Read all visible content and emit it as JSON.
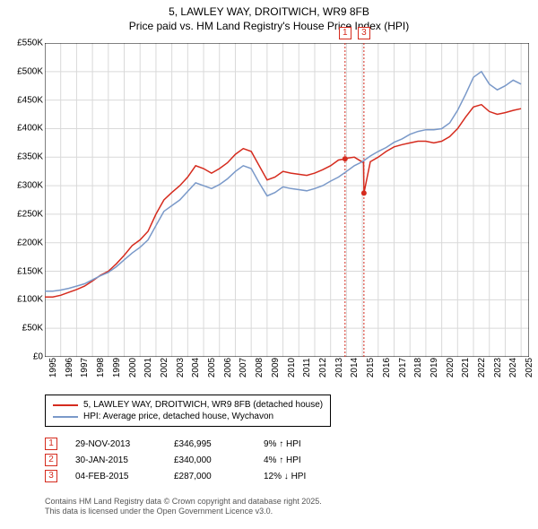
{
  "title": {
    "line1": "5, LAWLEY WAY, DROITWICH, WR9 8FB",
    "line2": "Price paid vs. HM Land Registry's House Price Index (HPI)",
    "fontsize": 12,
    "color": "#000000"
  },
  "chart": {
    "type": "line",
    "background_color": "#ffffff",
    "grid_color": "#d9d9d9",
    "axis_color": "#000000",
    "xlim": [
      1995,
      2025.5
    ],
    "ylim": [
      0,
      550000
    ],
    "ytick_step": 50000,
    "yticks": [
      "£0",
      "£50K",
      "£100K",
      "£150K",
      "£200K",
      "£250K",
      "£300K",
      "£350K",
      "£400K",
      "£450K",
      "£500K",
      "£550K"
    ],
    "xticks": [
      "1995",
      "1996",
      "1997",
      "1998",
      "1999",
      "2000",
      "2001",
      "2002",
      "2003",
      "2004",
      "2005",
      "2006",
      "2007",
      "2008",
      "2009",
      "2010",
      "2011",
      "2012",
      "2013",
      "2014",
      "2015",
      "2016",
      "2017",
      "2018",
      "2019",
      "2020",
      "2021",
      "2022",
      "2023",
      "2024",
      "2025"
    ],
    "tick_fontsize": 10,
    "series": [
      {
        "name": "price_paid",
        "label": "5, LAWLEY WAY, DROITWICH, WR9 8FB (detached house)",
        "color": "#d52b1e",
        "line_width": 1.5,
        "x": [
          1995,
          1995.5,
          1996,
          1996.5,
          1997,
          1997.5,
          1998,
          1998.5,
          1999,
          1999.5,
          2000,
          2000.5,
          2001,
          2001.5,
          2002,
          2002.5,
          2003,
          2003.5,
          2004,
          2004.5,
          2005,
          2005.5,
          2006,
          2006.5,
          2007,
          2007.5,
          2008,
          2008.5,
          2009,
          2009.5,
          2010,
          2010.5,
          2011,
          2011.5,
          2012,
          2012.5,
          2013,
          2013.5,
          2013.91,
          2014,
          2014.5,
          2015.08,
          2015.1,
          2015.5,
          2016,
          2016.5,
          2017,
          2017.5,
          2018,
          2018.5,
          2019,
          2019.5,
          2020,
          2020.5,
          2021,
          2021.5,
          2022,
          2022.5,
          2023,
          2023.5,
          2024,
          2024.5,
          2025
        ],
        "y": [
          105000,
          105000,
          108000,
          113000,
          118000,
          124000,
          133000,
          143000,
          150000,
          163000,
          178000,
          195000,
          205000,
          220000,
          250000,
          275000,
          288000,
          300000,
          315000,
          335000,
          330000,
          322000,
          330000,
          340000,
          355000,
          365000,
          360000,
          335000,
          310000,
          315000,
          325000,
          322000,
          320000,
          318000,
          322000,
          328000,
          335000,
          345000,
          346995,
          348000,
          350000,
          340000,
          287000,
          342000,
          350000,
          360000,
          368000,
          372000,
          375000,
          378000,
          378000,
          375000,
          378000,
          386000,
          400000,
          420000,
          438000,
          442000,
          430000,
          425000,
          428000,
          432000,
          435000
        ]
      },
      {
        "name": "hpi",
        "label": "HPI: Average price, detached house, Wychavon",
        "color": "#7a99c9",
        "line_width": 1.5,
        "x": [
          1995,
          1995.5,
          1996,
          1996.5,
          1997,
          1997.5,
          1998,
          1998.5,
          1999,
          1999.5,
          2000,
          2000.5,
          2001,
          2001.5,
          2002,
          2002.5,
          2003,
          2003.5,
          2004,
          2004.5,
          2005,
          2005.5,
          2006,
          2006.5,
          2007,
          2007.5,
          2008,
          2008.5,
          2009,
          2009.5,
          2010,
          2010.5,
          2011,
          2011.5,
          2012,
          2012.5,
          2013,
          2013.5,
          2014,
          2014.5,
          2015,
          2015.5,
          2016,
          2016.5,
          2017,
          2017.5,
          2018,
          2018.5,
          2019,
          2019.5,
          2020,
          2020.5,
          2021,
          2021.5,
          2022,
          2022.5,
          2023,
          2023.5,
          2024,
          2024.5,
          2025
        ],
        "y": [
          115000,
          115000,
          117000,
          120000,
          124000,
          128000,
          135000,
          142000,
          148000,
          158000,
          170000,
          182000,
          192000,
          205000,
          230000,
          255000,
          265000,
          275000,
          290000,
          305000,
          300000,
          295000,
          302000,
          312000,
          325000,
          335000,
          330000,
          305000,
          282000,
          288000,
          298000,
          295000,
          293000,
          291000,
          295000,
          300000,
          308000,
          315000,
          325000,
          335000,
          342000,
          352000,
          360000,
          367000,
          376000,
          382000,
          390000,
          395000,
          398000,
          398000,
          400000,
          410000,
          432000,
          460000,
          490000,
          500000,
          478000,
          468000,
          475000,
          485000,
          478000
        ]
      }
    ],
    "markers": [
      {
        "id": "1",
        "x": 2013.91,
        "y": 346995,
        "box_color": "#d52b1e"
      },
      {
        "id": "3",
        "x": 2015.1,
        "y": 287000,
        "box_color": "#d52b1e"
      }
    ],
    "marker_vlines_color": "#d52b1e",
    "marker_vline_dash": "2,2"
  },
  "legend": {
    "border_color": "#000000",
    "fontsize": 10
  },
  "sales": [
    {
      "id": "1",
      "date": "29-NOV-2013",
      "price": "£346,995",
      "change": "9% ↑ HPI",
      "box_color": "#d52b1e"
    },
    {
      "id": "2",
      "date": "30-JAN-2015",
      "price": "£340,000",
      "change": "4% ↑ HPI",
      "box_color": "#d52b1e"
    },
    {
      "id": "3",
      "date": "04-FEB-2015",
      "price": "£287,000",
      "change": "12% ↓ HPI",
      "box_color": "#d52b1e"
    }
  ],
  "attribution": {
    "line1": "Contains HM Land Registry data © Crown copyright and database right 2025.",
    "line2": "This data is licensed under the Open Government Licence v3.0.",
    "color": "#555555"
  }
}
